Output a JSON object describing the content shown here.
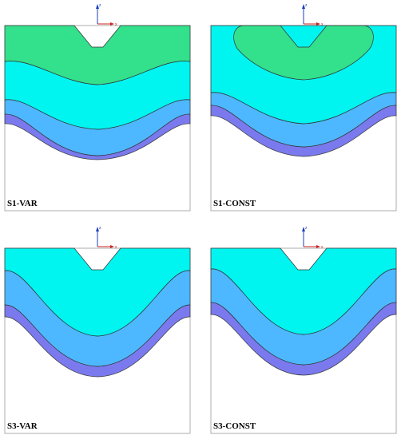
{
  "colors": {
    "green": "#33e08c",
    "cyan": "#00f5f0",
    "blue": "#4db8ff",
    "violet": "#7a7aee",
    "outline": "#333333",
    "axis_z": "#1a3fbf",
    "axis_x": "#cc2222"
  },
  "axis": {
    "z_label": "z",
    "x_label": "x"
  },
  "panels": [
    {
      "id": "s1-var",
      "label": "S1-VAR"
    },
    {
      "id": "s1-const",
      "label": "S1-CONST"
    },
    {
      "id": "s3-var",
      "label": "S3-VAR"
    },
    {
      "id": "s3-const",
      "label": "S3-CONST"
    }
  ]
}
